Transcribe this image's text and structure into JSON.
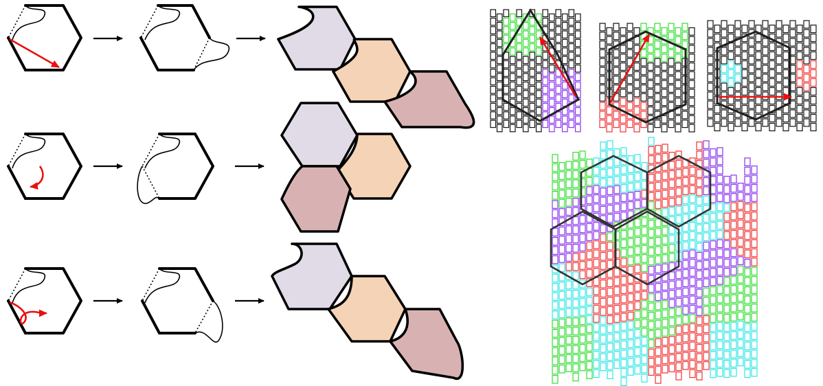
{
  "figure": {
    "colors": {
      "lavender": "#e0dbe6",
      "peach": "#f5d3b6",
      "rose": "#d8b2b2",
      "green": "#33dd33",
      "cyan": "#33e5e5",
      "red": "#ee3333",
      "purple": "#8833ee",
      "arrow_red": "#e81010"
    },
    "rows": [
      {
        "transform": "translation",
        "icon": "straight-arrow-icon"
      },
      {
        "transform": "rotation",
        "icon": "curved-arrow-icon"
      },
      {
        "transform": "glide-reflection",
        "icon": "loop-arrow-icon"
      }
    ],
    "grids": [
      {
        "highlight": [
          "green",
          "purple"
        ],
        "icon": "diagonal-arrow-icon"
      },
      {
        "highlight": [
          "green",
          "red"
        ],
        "icon": "diagonal-arrow-icon"
      },
      {
        "highlight": [
          "cyan",
          "red"
        ],
        "icon": "horizontal-arrow-icon"
      }
    ],
    "mosaic_palette": [
      "green",
      "cyan",
      "red",
      "purple"
    ]
  }
}
